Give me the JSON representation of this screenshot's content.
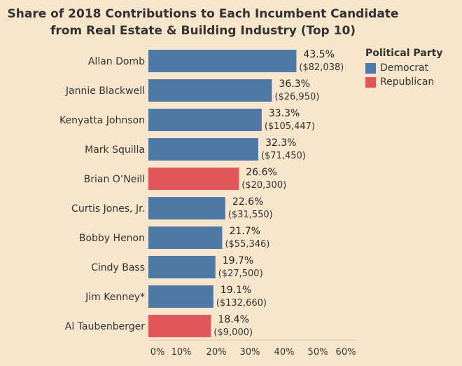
{
  "chart_data": {
    "type": "bar",
    "orientation": "horizontal",
    "title": "Share of 2018 Contributions to Each Incumbent Candidate from Real Estate & Building Industry (Top 10)",
    "title_lines": [
      "Share of 2018 Contributions to Each Incumbent Candidate",
      "from Real Estate & Building Industry (Top 10)"
    ],
    "xlim": [
      0,
      60
    ],
    "xticks": [
      "0%",
      "10%",
      "20%",
      "30%",
      "40%",
      "50%",
      "60%"
    ],
    "grid": false,
    "legend": {
      "title": "Political Party",
      "placement": "top-right",
      "entries": [
        {
          "name": "Democrat",
          "color": "#4e79a7"
        },
        {
          "name": "Republican",
          "color": "#e15759"
        }
      ]
    },
    "bars": [
      {
        "category": "Allan Domb",
        "value": 43.5,
        "label": "43.5%",
        "amount": "($82,038)",
        "party": "Democrat"
      },
      {
        "category": "Jannie Blackwell",
        "value": 36.3,
        "label": "36.3%",
        "amount": "($26,950)",
        "party": "Democrat"
      },
      {
        "category": "Kenyatta Johnson",
        "value": 33.3,
        "label": "33.3%",
        "amount": "($105,447)",
        "party": "Democrat"
      },
      {
        "category": "Mark Squilla",
        "value": 32.3,
        "label": "32.3%",
        "amount": "($71,450)",
        "party": "Democrat"
      },
      {
        "category": "Brian O’Neill",
        "value": 26.6,
        "label": "26.6%",
        "amount": "($20,300)",
        "party": "Republican"
      },
      {
        "category": "Curtis Jones, Jr.",
        "value": 22.6,
        "label": "22.6%",
        "amount": "($31,550)",
        "party": "Democrat"
      },
      {
        "category": "Bobby Henon",
        "value": 21.7,
        "label": "21.7%",
        "amount": "($55,346)",
        "party": "Democrat"
      },
      {
        "category": "Cindy Bass",
        "value": 19.7,
        "label": "19.7%",
        "amount": "($27,500)",
        "party": "Democrat"
      },
      {
        "category": "Jim Kenney*",
        "value": 19.1,
        "label": "19.1%",
        "amount": "($132,660)",
        "party": "Democrat"
      },
      {
        "category": "Al Taubenberger",
        "value": 18.4,
        "label": "18.4%",
        "amount": "($9,000)",
        "party": "Republican"
      }
    ]
  }
}
